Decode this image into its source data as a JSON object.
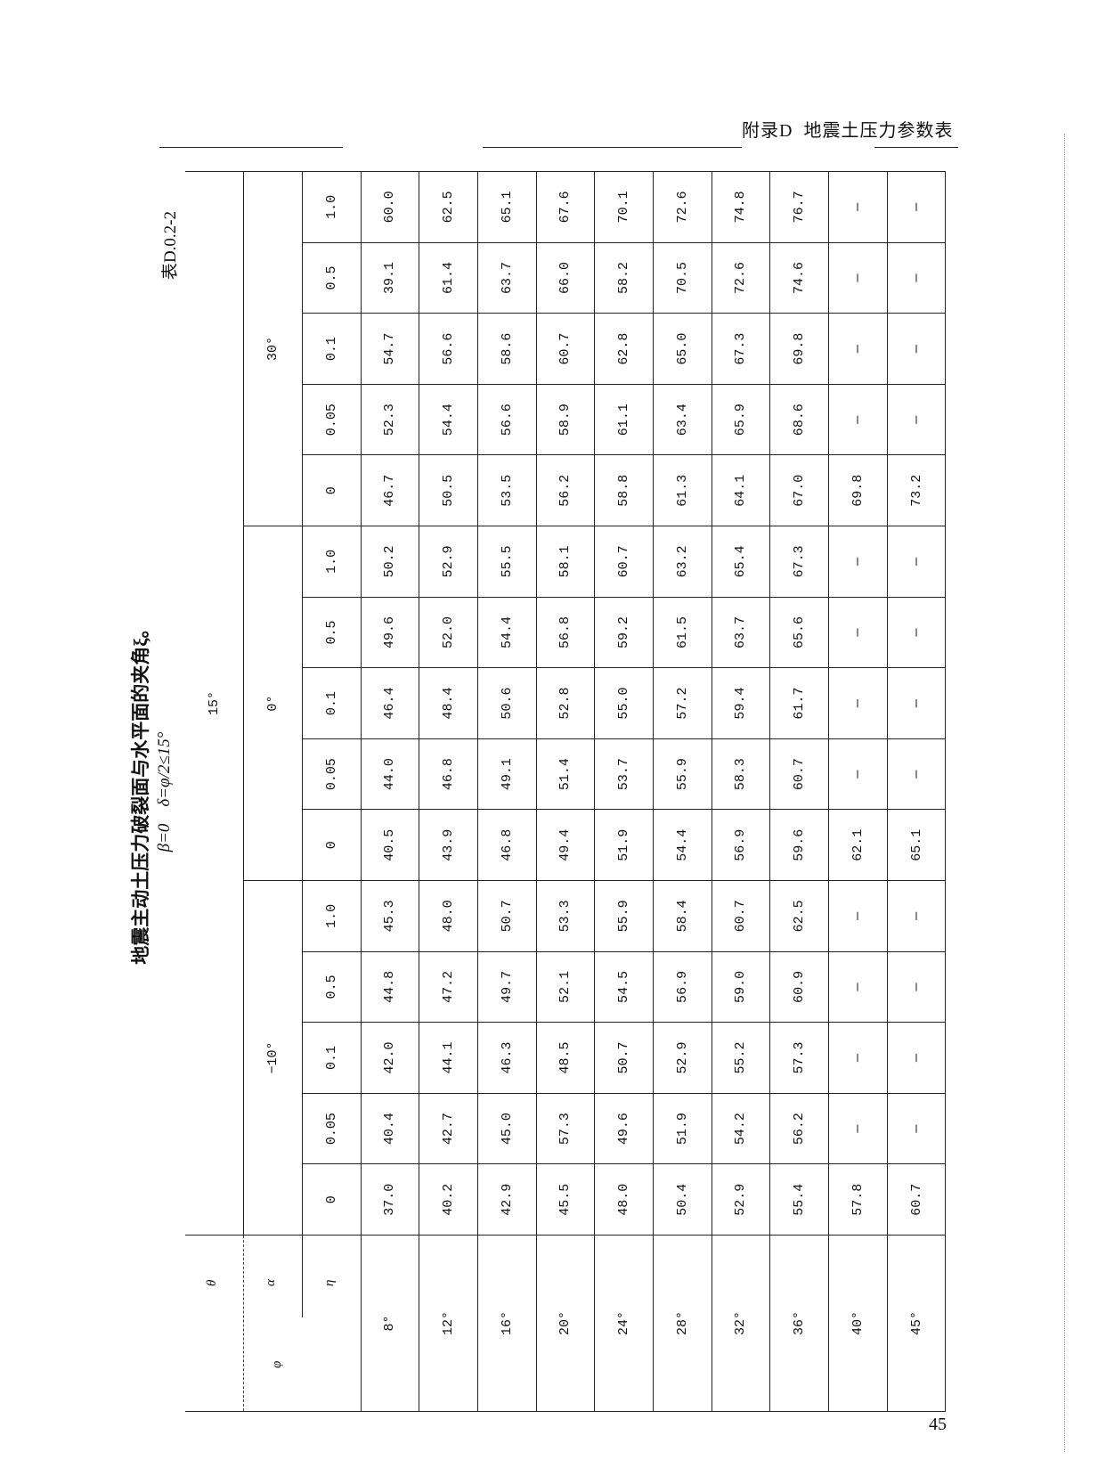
{
  "header": {
    "running_title": "附录D  地震土压力参数表",
    "page_number": "45"
  },
  "table": {
    "number": "表D.0.2-2",
    "title": "地震主动土压力破裂面与水平面的夹角ξ。",
    "conditions": "β=0    δ=φ/2≤15°",
    "corner": {
      "theta": "θ",
      "alpha": "α",
      "eta": "η",
      "phi": "φ"
    },
    "theta_value": "15°",
    "alpha_values": [
      "−10°",
      "0°",
      "30°"
    ],
    "eta_values": [
      "0",
      "0.05",
      "0.1",
      "0.5",
      "1.0"
    ],
    "rows": [
      {
        "phi": "8°",
        "values": [
          "37.0",
          "40.4",
          "42.0",
          "44.8",
          "45.3",
          "40.5",
          "44.0",
          "46.4",
          "49.6",
          "50.2",
          "46.7",
          "52.3",
          "54.7",
          "39.1",
          "60.0"
        ]
      },
      {
        "phi": "12°",
        "values": [
          "40.2",
          "42.7",
          "44.1",
          "47.2",
          "48.0",
          "43.9",
          "46.8",
          "48.4",
          "52.0",
          "52.9",
          "50.5",
          "54.4",
          "56.6",
          "61.4",
          "62.5"
        ]
      },
      {
        "phi": "16°",
        "values": [
          "42.9",
          "45.0",
          "46.3",
          "49.7",
          "50.7",
          "46.8",
          "49.1",
          "50.6",
          "54.4",
          "55.5",
          "53.5",
          "56.6",
          "58.6",
          "63.7",
          "65.1"
        ]
      },
      {
        "phi": "20°",
        "values": [
          "45.5",
          "57.3",
          "48.5",
          "52.1",
          "53.3",
          "49.4",
          "51.4",
          "52.8",
          "56.8",
          "58.1",
          "56.2",
          "58.9",
          "60.7",
          "66.0",
          "67.6"
        ]
      },
      {
        "phi": "24°",
        "values": [
          "48.0",
          "49.6",
          "50.7",
          "54.5",
          "55.9",
          "51.9",
          "53.7",
          "55.0",
          "59.2",
          "60.7",
          "58.8",
          "61.1",
          "62.8",
          "58.2",
          "70.1"
        ]
      },
      {
        "phi": "28°",
        "values": [
          "50.4",
          "51.9",
          "52.9",
          "56.9",
          "58.4",
          "54.4",
          "55.9",
          "57.2",
          "61.5",
          "63.2",
          "61.3",
          "63.4",
          "65.0",
          "70.5",
          "72.6"
        ]
      },
      {
        "phi": "32°",
        "values": [
          "52.9",
          "54.2",
          "55.2",
          "59.0",
          "60.7",
          "56.9",
          "58.3",
          "59.4",
          "63.7",
          "65.4",
          "64.1",
          "65.9",
          "67.3",
          "72.6",
          "74.8"
        ]
      },
      {
        "phi": "36°",
        "values": [
          "55.4",
          "56.2",
          "57.3",
          "60.9",
          "62.5",
          "59.6",
          "60.7",
          "61.7",
          "65.6",
          "67.3",
          "67.0",
          "68.6",
          "69.8",
          "74.6",
          "76.7"
        ]
      },
      {
        "phi": "40°",
        "values": [
          "57.8",
          "—",
          "—",
          "—",
          "—",
          "62.1",
          "—",
          "—",
          "—",
          "—",
          "69.8",
          "—",
          "—",
          "—",
          "—"
        ]
      },
      {
        "phi": "45°",
        "values": [
          "60.7",
          "—",
          "—",
          "—",
          "—",
          "65.1",
          "—",
          "—",
          "—",
          "—",
          "73.2",
          "—",
          "—",
          "—",
          "—"
        ]
      }
    ]
  }
}
